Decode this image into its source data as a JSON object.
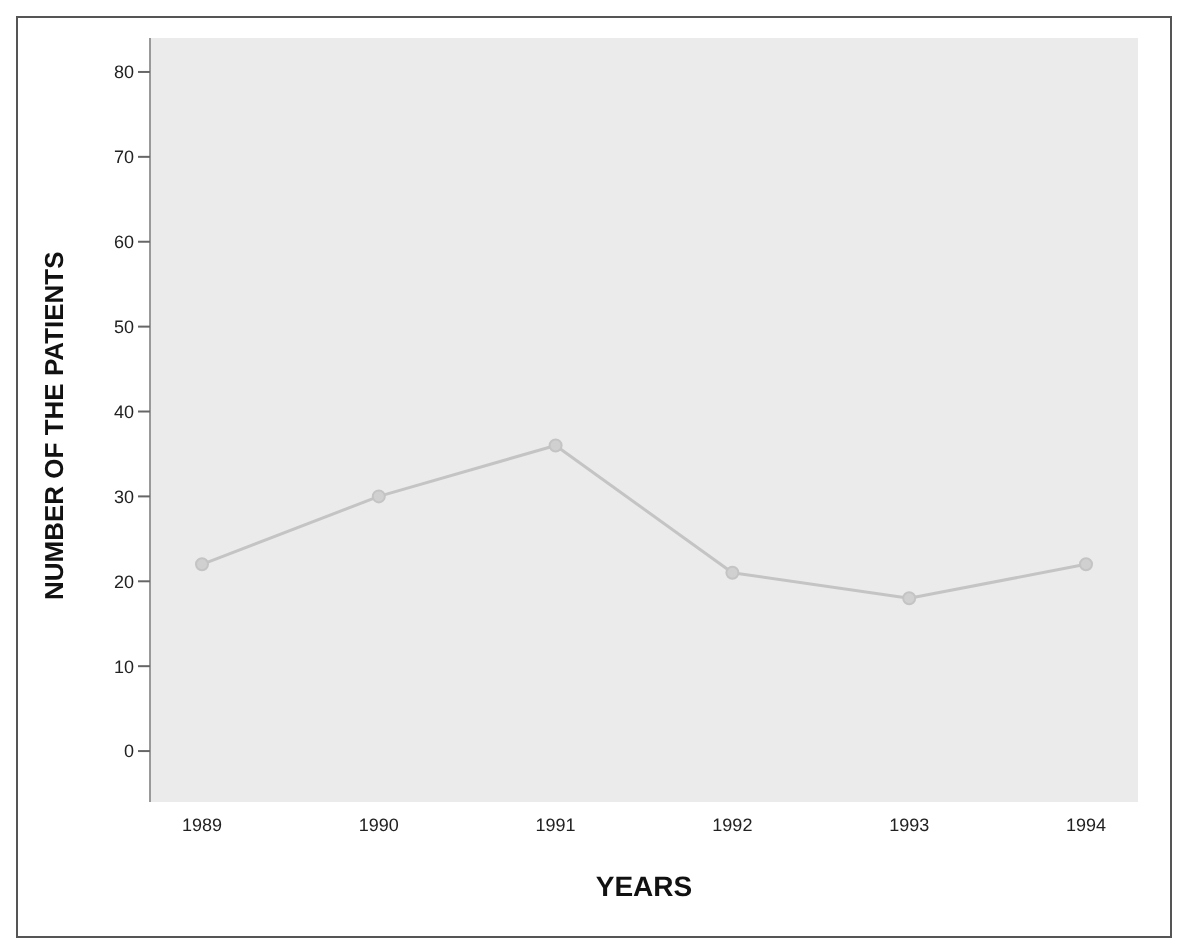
{
  "chart_data": {
    "type": "line",
    "xlabel": "YEARS",
    "ylabel": "NUMBER OF THE PATIENTS",
    "categories": [
      "1989",
      "1990",
      "1991",
      "1992",
      "1993",
      "1994"
    ],
    "series": [
      {
        "color": "#c4c4c4",
        "values": [
          22,
          30,
          36,
          21,
          18,
          22
        ]
      }
    ],
    "ylim": [
      -6,
      84
    ],
    "yticks": [
      0,
      10,
      20,
      30,
      40,
      50,
      60,
      70,
      80
    ],
    "grid": false,
    "legend": false,
    "marker": "circle",
    "line_style": "solid"
  }
}
